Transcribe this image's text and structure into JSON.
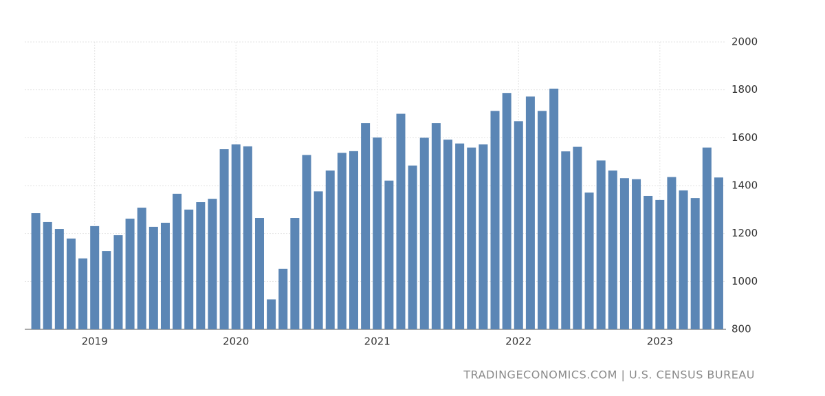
{
  "chart_data": {
    "type": "bar",
    "categories": [
      null,
      null,
      null,
      null,
      null,
      "2019",
      null,
      null,
      null,
      null,
      null,
      null,
      null,
      null,
      null,
      null,
      null,
      "2020",
      null,
      null,
      null,
      null,
      null,
      null,
      null,
      null,
      null,
      null,
      null,
      "2021",
      null,
      null,
      null,
      null,
      null,
      null,
      null,
      null,
      null,
      null,
      null,
      "2022",
      null,
      null,
      null,
      null,
      null,
      null,
      null,
      null,
      null,
      null,
      null,
      "2023",
      null,
      null,
      null,
      null,
      null
    ],
    "values": [
      1285,
      1248,
      1219,
      1179,
      1096,
      1231,
      1127,
      1193,
      1262,
      1308,
      1228,
      1245,
      1366,
      1300,
      1331,
      1345,
      1552,
      1572,
      1564,
      1265,
      925,
      1053,
      1265,
      1528,
      1376,
      1463,
      1537,
      1544,
      1661,
      1601,
      1421,
      1700,
      1484,
      1600,
      1661,
      1592,
      1576,
      1559,
      1572,
      1712,
      1787,
      1669,
      1772,
      1712,
      1805,
      1543,
      1562,
      1371,
      1505,
      1463,
      1431,
      1427,
      1357,
      1340,
      1436,
      1380,
      1348,
      1559,
      1434
    ],
    "color": "#5b86b5",
    "ylim": [
      800,
      2000
    ],
    "yticks": [
      800,
      1000,
      1200,
      1400,
      1600,
      1800,
      2000
    ],
    "grid": true,
    "source": "TRADINGECONOMICS.COM | U.S. CENSUS BUREAU"
  }
}
